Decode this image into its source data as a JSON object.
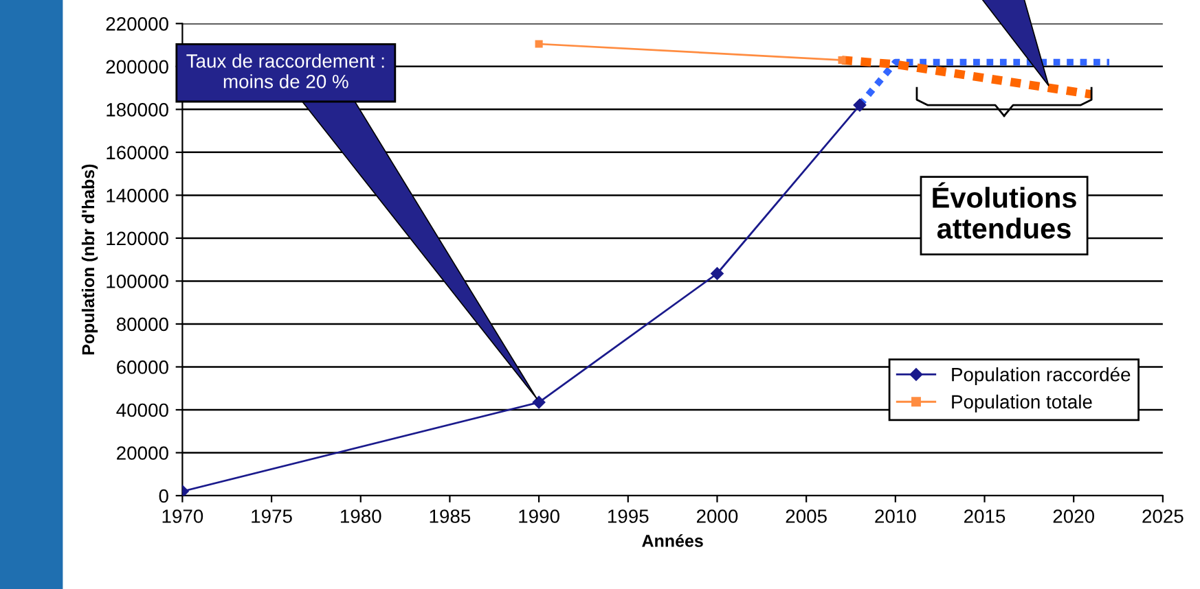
{
  "chart_data": {
    "type": "line",
    "xlabel": "Années",
    "ylabel": "Population (nbr d'habs)",
    "xlim": [
      1970,
      2025
    ],
    "xticks": [
      1970,
      1975,
      1980,
      1985,
      1990,
      1995,
      2000,
      2005,
      2010,
      2015,
      2020,
      2025
    ],
    "ylim": [
      0,
      220000
    ],
    "yticks": [
      0,
      20000,
      40000,
      60000,
      80000,
      100000,
      120000,
      140000,
      160000,
      180000,
      200000,
      220000
    ],
    "grid": "y",
    "legend": "bottom right",
    "series": [
      {
        "name": "Population raccordée",
        "color": "#1a1a8c",
        "marker": "diamond",
        "line_style": "solid",
        "x": [
          1970,
          1990,
          2000,
          2008
        ],
        "values": [
          2000,
          43500,
          103500,
          182000
        ]
      },
      {
        "name": "Population totale",
        "color": "#ff8c40",
        "marker": "square",
        "line_style": "solid",
        "x": [
          1990,
          2007
        ],
        "values": [
          210500,
          203000
        ]
      },
      {
        "color": "#3366ff",
        "marker": "none",
        "line_style": "dotted",
        "x": [
          2008,
          2010,
          2022
        ],
        "values": [
          182000,
          202000,
          202000
        ]
      },
      {
        "color": "#ff6600",
        "marker": "none",
        "line_style": "dashed",
        "x": [
          2007,
          2010,
          2021
        ],
        "values": [
          203000,
          201000,
          187000
        ]
      }
    ],
    "annotations": [
      "Taux de raccordement :\nmoins de 20 %",
      "Évolutions\nattendues"
    ]
  }
}
